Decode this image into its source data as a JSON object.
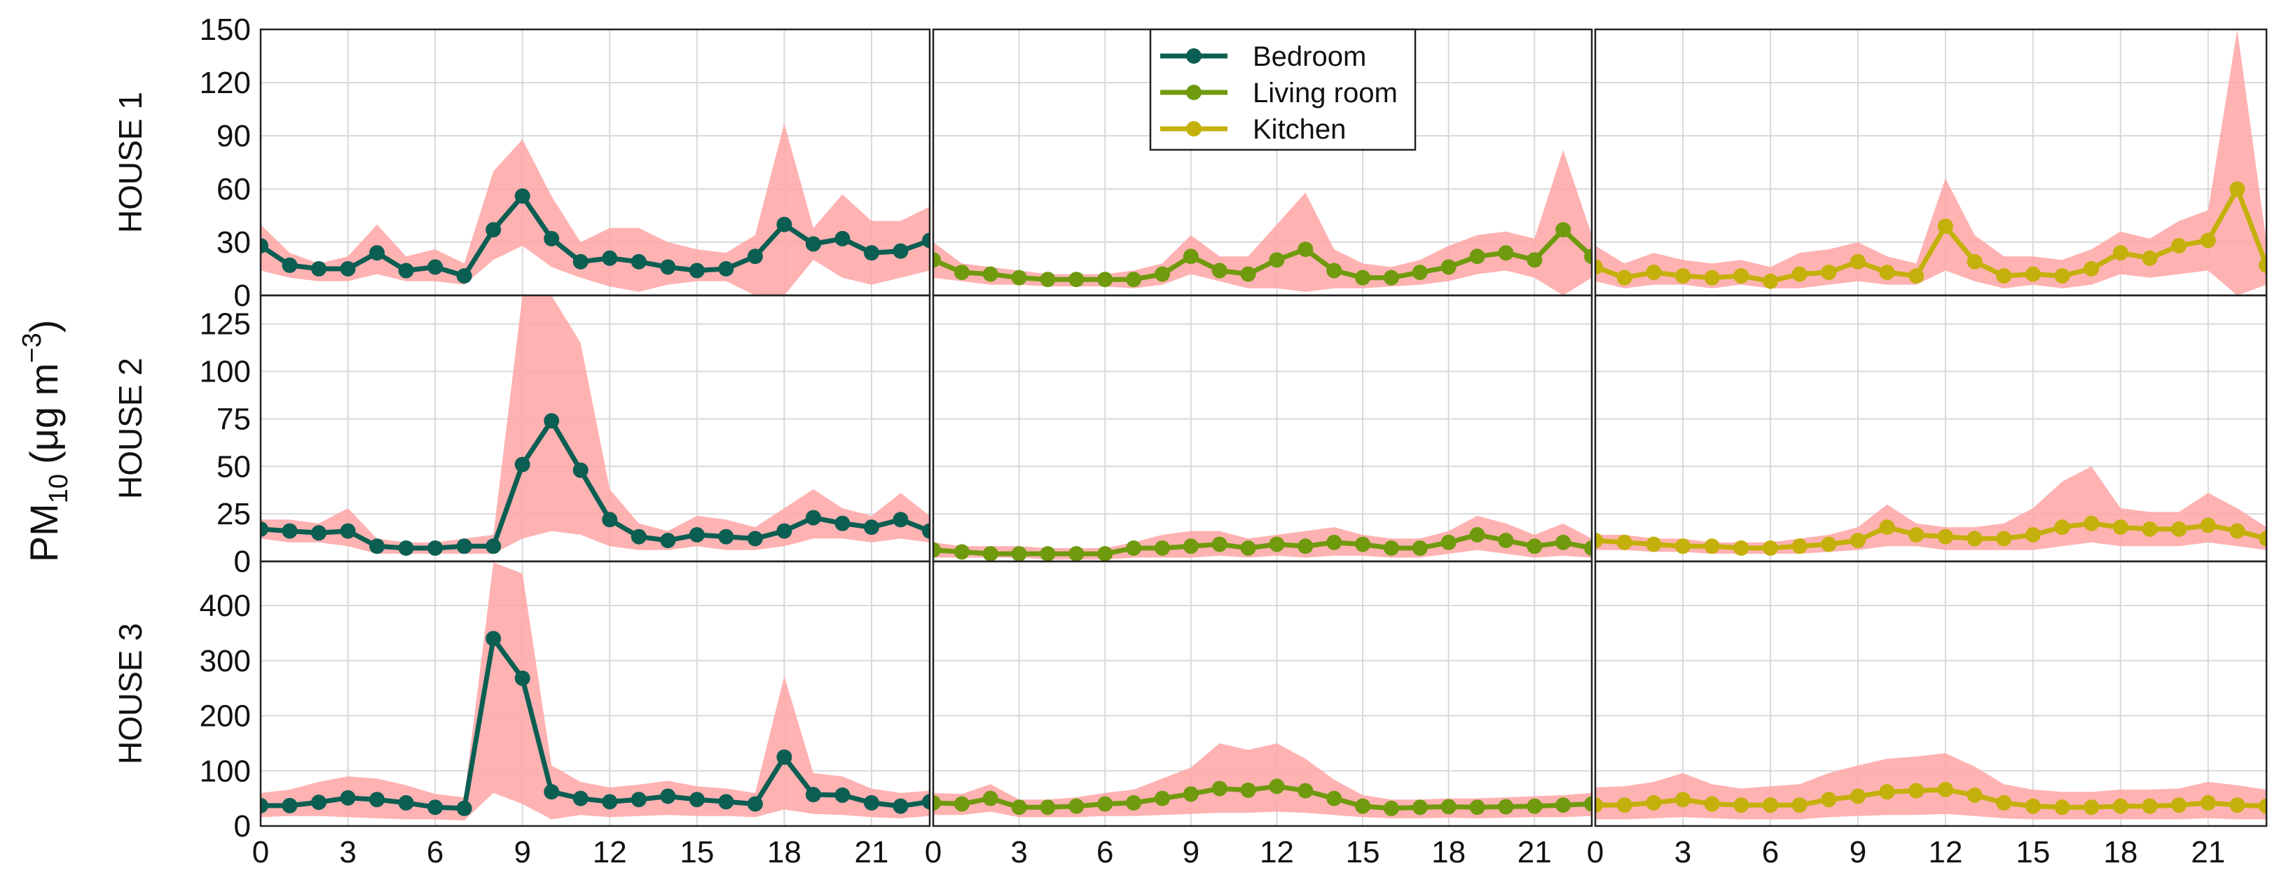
{
  "chart_data": {
    "type": "line",
    "layout": "3x3 small multiples with shaded range bands",
    "ylabel": {
      "main": "PM",
      "sub": "10",
      "unit": "(μg m",
      "exp": "−3",
      "close": ")"
    },
    "xlim": [
      0,
      23
    ],
    "xticks": [
      0,
      3,
      6,
      9,
      12,
      15,
      18,
      21
    ],
    "x": [
      0,
      1,
      2,
      3,
      4,
      5,
      6,
      7,
      8,
      9,
      10,
      11,
      12,
      13,
      14,
      15,
      16,
      17,
      18,
      19,
      20,
      21,
      22,
      23
    ],
    "series_names": [
      "Bedroom",
      "Living room",
      "Kitchen"
    ],
    "colors": {
      "Bedroom": "#0b5e52",
      "Living room": "#6f9a0e",
      "Kitchen": "#c4b00a",
      "band": "#ffa5a5"
    },
    "legend": {
      "position": "top",
      "entries": [
        "Bedroom",
        "Living room",
        "Kitchen"
      ]
    },
    "rows": [
      {
        "label": "HOUSE 1",
        "ylim": [
          0,
          150
        ],
        "yticks": [
          0,
          30,
          60,
          90,
          120,
          150
        ],
        "panels": [
          {
            "series": "Bedroom",
            "values": [
              28,
              17,
              15,
              15,
              24,
              14,
              16,
              11,
              37,
              56,
              32,
              19,
              21,
              19,
              16,
              14,
              15,
              22,
              40,
              29,
              32,
              24,
              25,
              31
            ],
            "upper": [
              40,
              24,
              18,
              22,
              40,
              22,
              26,
              18,
              70,
              88,
              56,
              30,
              38,
              38,
              30,
              26,
              24,
              34,
              97,
              38,
              57,
              42,
              42,
              50
            ],
            "lower": [
              14,
              10,
              8,
              8,
              12,
              8,
              8,
              6,
              20,
              28,
              16,
              10,
              5,
              2,
              6,
              8,
              8,
              0,
              0,
              20,
              10,
              6,
              10,
              14
            ]
          },
          {
            "series": "Living room",
            "values": [
              20,
              13,
              12,
              10,
              9,
              9,
              9,
              9,
              12,
              22,
              14,
              12,
              20,
              26,
              14,
              10,
              10,
              13,
              16,
              22,
              24,
              20,
              37,
              22
            ],
            "upper": [
              30,
              18,
              16,
              14,
              12,
              12,
              12,
              14,
              18,
              34,
              22,
              22,
              40,
              58,
              26,
              18,
              16,
              20,
              28,
              34,
              36,
              32,
              82,
              34
            ],
            "lower": [
              10,
              8,
              6,
              6,
              5,
              5,
              5,
              4,
              6,
              12,
              8,
              4,
              4,
              2,
              4,
              4,
              5,
              6,
              8,
              12,
              14,
              10,
              0,
              10
            ]
          },
          {
            "series": "Kitchen",
            "values": [
              16,
              10,
              13,
              11,
              10,
              11,
              8,
              12,
              13,
              19,
              13,
              11,
              39,
              19,
              11,
              12,
              11,
              15,
              24,
              21,
              28,
              31,
              60,
              17
            ],
            "upper": [
              28,
              18,
              24,
              20,
              18,
              20,
              16,
              24,
              26,
              30,
              22,
              18,
              66,
              34,
              22,
              22,
              20,
              26,
              36,
              32,
              42,
              48,
              155,
              30
            ],
            "lower": [
              8,
              4,
              6,
              6,
              4,
              6,
              4,
              4,
              6,
              8,
              6,
              6,
              14,
              8,
              4,
              6,
              4,
              6,
              12,
              10,
              12,
              14,
              0,
              6
            ]
          }
        ]
      },
      {
        "label": "HOUSE 2",
        "ylim": [
          0,
          140
        ],
        "yticks": [
          0,
          25,
          50,
          75,
          100,
          125
        ],
        "panels": [
          {
            "series": "Bedroom",
            "values": [
              17,
              16,
              15,
              16,
              8,
              7,
              7,
              8,
              8,
              51,
              74,
              48,
              22,
              13,
              11,
              14,
              13,
              12,
              16,
              23,
              20,
              18,
              22,
              16
            ],
            "upper": [
              22,
              22,
              20,
              28,
              12,
              10,
              10,
              12,
              14,
              140,
              140,
              115,
              38,
              20,
              16,
              24,
              22,
              18,
              28,
              38,
              28,
              24,
              36,
              24
            ],
            "lower": [
              12,
              10,
              10,
              8,
              4,
              4,
              4,
              4,
              4,
              12,
              16,
              14,
              8,
              6,
              6,
              8,
              6,
              6,
              8,
              12,
              12,
              10,
              12,
              10
            ]
          },
          {
            "series": "Living room",
            "values": [
              6,
              5,
              4,
              4,
              4,
              4,
              4,
              7,
              7,
              8,
              9,
              7,
              9,
              8,
              10,
              9,
              7,
              7,
              10,
              14,
              11,
              8,
              10,
              7
            ],
            "upper": [
              10,
              8,
              8,
              8,
              7,
              7,
              7,
              10,
              14,
              16,
              16,
              12,
              14,
              16,
              18,
              14,
              12,
              12,
              16,
              24,
              20,
              14,
              20,
              12
            ],
            "lower": [
              2,
              2,
              2,
              2,
              1,
              1,
              1,
              2,
              2,
              2,
              3,
              2,
              3,
              2,
              3,
              3,
              2,
              2,
              4,
              6,
              4,
              2,
              3,
              2
            ]
          },
          {
            "series": "Kitchen",
            "values": [
              11,
              10,
              9,
              8,
              8,
              7,
              7,
              8,
              9,
              11,
              18,
              14,
              13,
              12,
              12,
              14,
              18,
              20,
              18,
              17,
              17,
              19,
              16,
              12
            ],
            "upper": [
              14,
              14,
              12,
              12,
              10,
              10,
              10,
              12,
              14,
              18,
              30,
              20,
              18,
              18,
              20,
              28,
              42,
              50,
              28,
              26,
              26,
              36,
              28,
              18
            ],
            "lower": [
              6,
              6,
              5,
              5,
              4,
              4,
              4,
              4,
              5,
              6,
              8,
              8,
              6,
              6,
              6,
              6,
              8,
              10,
              8,
              8,
              8,
              10,
              8,
              6
            ]
          }
        ]
      },
      {
        "label": "HOUSE 3",
        "ylim": [
          0,
          480
        ],
        "yticks": [
          0,
          100,
          200,
          300,
          400
        ],
        "panels": [
          {
            "series": "Bedroom",
            "values": [
              37,
              37,
              43,
              51,
              48,
              42,
              34,
              32,
              340,
              268,
              62,
              50,
              44,
              48,
              54,
              48,
              44,
              40,
              125,
              57,
              56,
              42,
              36,
              44
            ],
            "upper": [
              60,
              66,
              80,
              90,
              86,
              74,
              58,
              52,
              478,
              458,
              110,
              80,
              70,
              75,
              82,
              72,
              68,
              60,
              272,
              96,
              90,
              68,
              60,
              64
            ],
            "lower": [
              16,
              18,
              18,
              16,
              14,
              12,
              12,
              10,
              60,
              40,
              12,
              20,
              16,
              18,
              20,
              18,
              18,
              16,
              30,
              22,
              20,
              16,
              14,
              18
            ]
          },
          {
            "series": "Living room",
            "values": [
              42,
              40,
              50,
              34,
              34,
              36,
              40,
              42,
              50,
              58,
              68,
              65,
              72,
              64,
              50,
              36,
              32,
              34,
              35,
              34,
              35,
              36,
              38,
              40
            ],
            "upper": [
              60,
              58,
              76,
              48,
              48,
              52,
              60,
              66,
              86,
              106,
              150,
              138,
              150,
              122,
              84,
              56,
              48,
              48,
              50,
              50,
              52,
              54,
              56,
              60
            ],
            "lower": [
              20,
              20,
              26,
              16,
              16,
              16,
              18,
              18,
              20,
              22,
              24,
              24,
              26,
              24,
              20,
              16,
              14,
              14,
              15,
              14,
              15,
              16,
              16,
              18
            ]
          },
          {
            "series": "Kitchen",
            "values": [
              38,
              38,
              42,
              48,
              40,
              38,
              38,
              38,
              48,
              54,
              62,
              64,
              66,
              56,
              42,
              36,
              34,
              34,
              36,
              36,
              38,
              42,
              38,
              36
            ],
            "upper": [
              70,
              72,
              80,
              96,
              76,
              68,
              72,
              76,
              96,
              110,
              122,
              126,
              132,
              108,
              76,
              66,
              62,
              62,
              66,
              66,
              68,
              80,
              74,
              66
            ],
            "lower": [
              12,
              12,
              14,
              16,
              14,
              12,
              12,
              12,
              16,
              18,
              20,
              20,
              22,
              18,
              14,
              12,
              12,
              12,
              12,
              12,
              12,
              14,
              12,
              12
            ]
          }
        ]
      }
    ]
  }
}
